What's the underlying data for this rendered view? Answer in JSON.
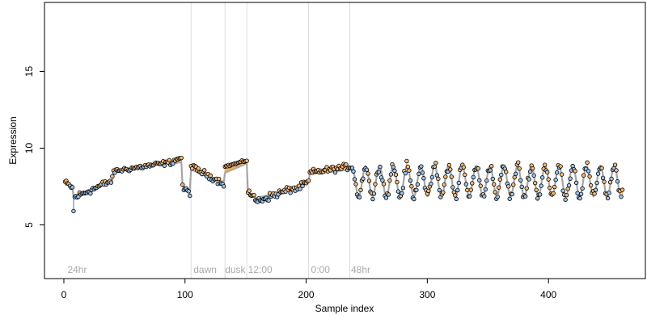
{
  "chart_data": {
    "type": "scatter",
    "xlabel": "Sample index",
    "ylabel": "Expression",
    "xlim": [
      -16,
      480
    ],
    "ylim": [
      1.5,
      19.5
    ],
    "x_ticks": [
      0,
      100,
      200,
      300,
      400
    ],
    "y_ticks": [
      5,
      10,
      15
    ],
    "grid": false,
    "legend": "none",
    "colors": {
      "points_fill_low": "#9dc3e6",
      "points_fill_high": "#f5b97a",
      "spike_low": "#5b8fd6",
      "spike_high": "#f0a030",
      "fit_line": "#a6a6a6",
      "vlines": "#dddddd",
      "annotation": "#aaaaaa"
    },
    "vlines": [
      105,
      133,
      151,
      202,
      236
    ],
    "annotations": [
      {
        "x": 3,
        "text": "24hr"
      },
      {
        "x": 107,
        "text": "dawn"
      },
      {
        "x": 133,
        "text": "dusk"
      },
      {
        "x": 152,
        "text": "12:00"
      },
      {
        "x": 204,
        "text": "0:00"
      },
      {
        "x": 237,
        "text": "48hr"
      }
    ],
    "series": [
      {
        "segments": [
          {
            "x0": 1,
            "x1": 7,
            "fit": [
              7.6,
              7.6
            ],
            "obs": [
              7.8,
              7.4
            ],
            "noise": 0.25
          },
          {
            "x0": 8,
            "x1": 8,
            "fit": [
              6.8,
              6.8
            ],
            "obs": [
              5.9,
              5.9
            ],
            "noise": 0
          },
          {
            "x0": 9,
            "x1": 40,
            "fit": [
              6.9,
              7.9
            ],
            "obs": [
              6.8,
              7.9
            ],
            "noise": 0.35
          },
          {
            "x0": 41,
            "x1": 90,
            "fit": [
              8.5,
              9.1
            ],
            "obs": [
              8.5,
              9.1
            ],
            "noise": 0.25
          },
          {
            "x0": 91,
            "x1": 97,
            "fit": [
              9.0,
              9.1
            ],
            "obs": [
              9.2,
              9.4
            ],
            "noise": 0.2
          },
          {
            "x0": 98,
            "x1": 104,
            "fit": [
              7.5,
              7.3
            ],
            "obs": [
              7.4,
              7.1
            ],
            "noise": 0.3
          },
          {
            "x0": 105,
            "x1": 132,
            "fit": [
              8.6,
              7.8
            ],
            "obs": [
              8.8,
              7.7
            ],
            "noise": 0.3
          },
          {
            "x0": 133,
            "x1": 151,
            "fit": [
              8.4,
              9.0
            ],
            "obs": [
              8.8,
              9.2
            ],
            "noise": 0.1
          },
          {
            "x0": 152,
            "x1": 160,
            "fit": [
              7.0,
              6.7
            ],
            "obs": [
              7.2,
              6.5
            ],
            "noise": 0.3
          },
          {
            "x0": 161,
            "x1": 190,
            "fit": [
              6.8,
              7.3
            ],
            "obs": [
              6.6,
              7.4
            ],
            "noise": 0.35
          },
          {
            "x0": 191,
            "x1": 202,
            "fit": [
              7.3,
              7.8
            ],
            "obs": [
              7.3,
              7.8
            ],
            "noise": 0.3
          },
          {
            "x0": 203,
            "x1": 236,
            "fit": [
              8.3,
              8.6
            ],
            "obs": [
              8.4,
              8.8
            ],
            "noise": 0.3
          }
        ],
        "oscillation": {
          "x0": 237,
          "x1": 461,
          "period": 11.4,
          "center": 7.85,
          "amplitude": 1.0,
          "noise": 0.45,
          "min_value": 5.9,
          "max_value": 9.3
        }
      }
    ]
  }
}
